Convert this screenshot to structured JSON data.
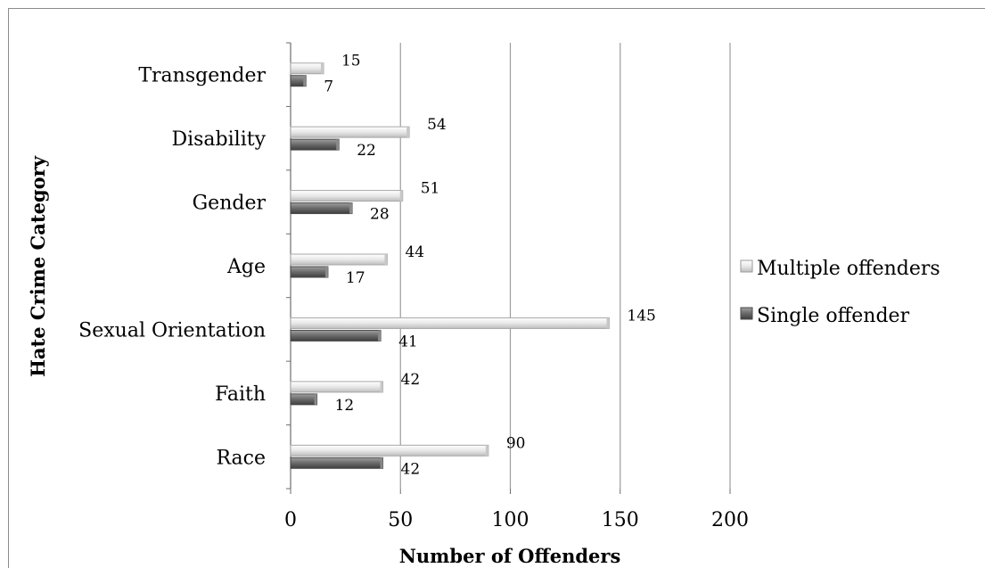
{
  "chart_data": {
    "type": "bar",
    "orientation": "horizontal",
    "categories": [
      "Transgender",
      "Disability",
      "Gender",
      "Age",
      "Sexual Orientation",
      "Faith",
      "Race"
    ],
    "series": [
      {
        "name": "Multiple offenders",
        "values": [
          15,
          54,
          51,
          44,
          145,
          42,
          90
        ],
        "color": "#e6e6e6"
      },
      {
        "name": "Single offender",
        "values": [
          7,
          22,
          28,
          17,
          41,
          12,
          42
        ],
        "color": "#6f6f6f"
      }
    ],
    "xlabel": "Number of Offenders",
    "ylabel": "Hate Crime Category",
    "xlim": [
      0,
      200
    ],
    "xticks": [
      "0",
      "50",
      "100",
      "150",
      "200"
    ],
    "grid": "vertical",
    "legend_position": "right"
  }
}
